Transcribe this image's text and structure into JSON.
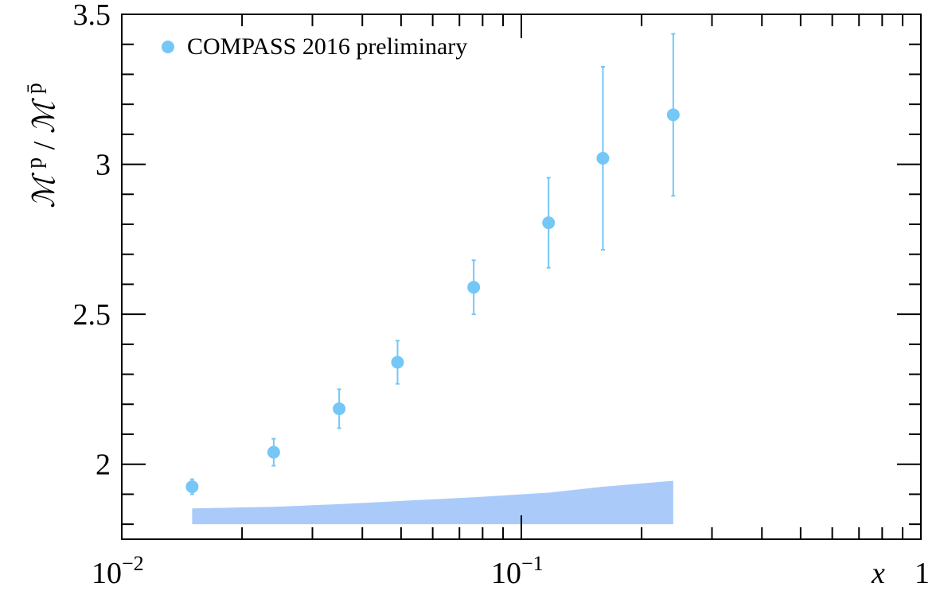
{
  "chart_data": {
    "type": "scatter",
    "title": "",
    "xlabel": "x",
    "ylabel": "ℳ^p/ℳ^p̄",
    "x_scale": "log",
    "xlim": [
      0.01,
      1
    ],
    "ylim": [
      1.75,
      3.5
    ],
    "grid": false,
    "legend_position": "top-left",
    "x_tick_labels": [
      "10^-2",
      "10^-1",
      "1"
    ],
    "y_tick_labels": [
      "2",
      "2.5",
      "3",
      "3.5"
    ],
    "series": [
      {
        "name": "COMPASS 2016 preliminary",
        "color": "#74c7f7",
        "points": [
          {
            "x": 0.015,
            "y": 1.925,
            "err": 0.025
          },
          {
            "x": 0.024,
            "y": 2.04,
            "err": 0.045
          },
          {
            "x": 0.035,
            "y": 2.185,
            "err": 0.065
          },
          {
            "x": 0.049,
            "y": 2.34,
            "err": 0.072
          },
          {
            "x": 0.076,
            "y": 2.59,
            "err": 0.09
          },
          {
            "x": 0.117,
            "y": 2.805,
            "err": 0.15
          },
          {
            "x": 0.16,
            "y": 3.02,
            "err": 0.305
          },
          {
            "x": 0.24,
            "y": 3.165,
            "err": 0.27
          }
        ]
      }
    ],
    "band": {
      "color": "#aacbfa",
      "x": [
        0.015,
        0.024,
        0.035,
        0.049,
        0.076,
        0.117,
        0.16,
        0.24
      ],
      "low": [
        1.8,
        1.8,
        1.8,
        1.8,
        1.8,
        1.8,
        1.8,
        1.8
      ],
      "high": [
        1.853,
        1.858,
        1.867,
        1.877,
        1.89,
        1.905,
        1.925,
        1.945
      ]
    }
  }
}
